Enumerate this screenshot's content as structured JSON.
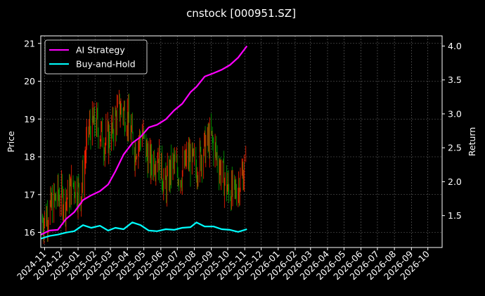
{
  "chart_data": {
    "type": "line",
    "title": "cnstock [000951.SZ]",
    "ylabel_left": "Price",
    "ylabel_right": "Return",
    "xlabel": "",
    "x_tick_labels": [
      "2024-11",
      "2024-12",
      "2025-01",
      "2025-02",
      "2025-03",
      "2025-04",
      "2025-05",
      "2025-06",
      "2025-07",
      "2025-08",
      "2025-09",
      "2025-10",
      "2025-11",
      "2025-12",
      "2026-01",
      "2026-02",
      "2026-03",
      "2026-04",
      "2026-05",
      "2026-06",
      "2026-07",
      "2026-08",
      "2026-09",
      "2026-10"
    ],
    "y_left_ticks": [
      "16",
      "17",
      "18",
      "19",
      "20",
      "21"
    ],
    "y_right_ticks": [
      "1.5",
      "2.0",
      "2.5",
      "3.0",
      "3.5",
      "4.0"
    ],
    "ylim_left": [
      15.6,
      21.2
    ],
    "ylim_right": [
      1.03,
      4.15
    ],
    "x_range": [
      "2024-10-25",
      "2026-10-27"
    ],
    "grid": true,
    "legend": "top-left",
    "colors": {
      "background": "#000000",
      "ai_strategy": "#ff00ff",
      "buy_and_hold": "#00ffff",
      "candle_up": "#ff2200",
      "candle_down": "#00a000",
      "grid": "#666666"
    },
    "price_series": {
      "name": "",
      "x": [
        "2024-10-28",
        "2024-11-11",
        "2024-11-25",
        "2024-12-09",
        "2024-12-23",
        "2025-01-06",
        "2025-01-20",
        "2025-02-03",
        "2025-02-17",
        "2025-03-03",
        "2025-03-17",
        "2025-03-31",
        "2025-04-14",
        "2025-04-28",
        "2025-05-12",
        "2025-05-26",
        "2025-06-09",
        "2025-06-23",
        "2025-07-07",
        "2025-07-21",
        "2025-08-04",
        "2025-08-18",
        "2025-09-01",
        "2025-09-15",
        "2025-09-29",
        "2025-10-13",
        "2025-10-27",
        "2025-11-03"
      ],
      "values": [
        16.3,
        16.6,
        17.0,
        16.8,
        17.3,
        17.0,
        18.7,
        18.9,
        18.4,
        18.6,
        19.3,
        19.1,
        18.2,
        18.6,
        17.8,
        18.1,
        17.2,
        17.8,
        17.5,
        18.0,
        17.7,
        18.2,
        18.5,
        17.8,
        17.2,
        17.0,
        17.5,
        17.8
      ]
    },
    "series": [
      {
        "name": "AI Strategy",
        "x": [
          "2024-10-25",
          "2024-11-10",
          "2024-11-25",
          "2024-12-10",
          "2024-12-25",
          "2025-01-10",
          "2025-01-25",
          "2025-02-10",
          "2025-02-25",
          "2025-03-10",
          "2025-03-25",
          "2025-04-10",
          "2025-04-25",
          "2025-05-10",
          "2025-05-25",
          "2025-06-10",
          "2025-06-25",
          "2025-07-10",
          "2025-07-25",
          "2025-08-05",
          "2025-08-20",
          "2025-09-05",
          "2025-09-20",
          "2025-10-05",
          "2025-10-20",
          "2025-11-05"
        ],
        "values": [
          1.22,
          1.28,
          1.29,
          1.45,
          1.55,
          1.73,
          1.8,
          1.86,
          1.96,
          2.15,
          2.4,
          2.57,
          2.66,
          2.8,
          2.84,
          2.92,
          3.05,
          3.15,
          3.32,
          3.4,
          3.55,
          3.6,
          3.65,
          3.72,
          3.83,
          4.0
        ]
      },
      {
        "name": "Buy-and-Hold",
        "x": [
          "2024-10-25",
          "2024-11-10",
          "2024-11-25",
          "2024-12-10",
          "2024-12-25",
          "2025-01-10",
          "2025-01-25",
          "2025-02-10",
          "2025-02-25",
          "2025-03-10",
          "2025-03-25",
          "2025-04-10",
          "2025-04-25",
          "2025-05-10",
          "2025-05-25",
          "2025-06-10",
          "2025-06-25",
          "2025-07-10",
          "2025-07-25",
          "2025-08-05",
          "2025-08-20",
          "2025-09-05",
          "2025-09-20",
          "2025-10-05",
          "2025-10-20",
          "2025-11-05"
        ],
        "values": [
          1.16,
          1.2,
          1.22,
          1.25,
          1.27,
          1.36,
          1.32,
          1.35,
          1.28,
          1.32,
          1.3,
          1.4,
          1.36,
          1.28,
          1.27,
          1.3,
          1.29,
          1.32,
          1.33,
          1.4,
          1.34,
          1.34,
          1.3,
          1.29,
          1.26,
          1.3
        ]
      }
    ]
  }
}
